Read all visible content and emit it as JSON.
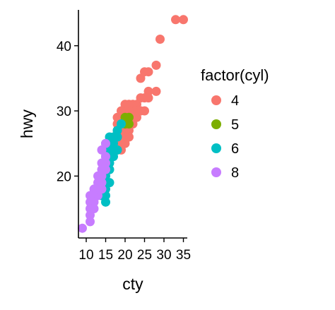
{
  "chart_data": {
    "type": "scatter",
    "title": "",
    "xlabel": "cty",
    "ylabel": "hwy",
    "xlim": [
      8,
      36
    ],
    "ylim": [
      10.5,
      45.5
    ],
    "x_ticks": [
      10,
      15,
      20,
      25,
      30,
      35
    ],
    "y_ticks": [
      20,
      30,
      40
    ],
    "grid": false,
    "legend": {
      "title": "factor(cyl)",
      "placement": "right"
    },
    "series": [
      {
        "name": "4",
        "color": "#F8766D",
        "points": [
          [
            35,
            44
          ],
          [
            33,
            44
          ],
          [
            29,
            41
          ],
          [
            28,
            37
          ],
          [
            26,
            36
          ],
          [
            25,
            36
          ],
          [
            24,
            35
          ],
          [
            28,
            33
          ],
          [
            26,
            33
          ],
          [
            25,
            32
          ],
          [
            24,
            32
          ],
          [
            23,
            31
          ],
          [
            22,
            31
          ],
          [
            21,
            31
          ],
          [
            20,
            31
          ],
          [
            26,
            32
          ],
          [
            25,
            30
          ],
          [
            24,
            30
          ],
          [
            23,
            30
          ],
          [
            22,
            30
          ],
          [
            21,
            30
          ],
          [
            20,
            30
          ],
          [
            19,
            30
          ],
          [
            23,
            29
          ],
          [
            22,
            29
          ],
          [
            21,
            29
          ],
          [
            20,
            29
          ],
          [
            19,
            29
          ],
          [
            18,
            29
          ],
          [
            22,
            28
          ],
          [
            21,
            28
          ],
          [
            20,
            28
          ],
          [
            19,
            28
          ],
          [
            18,
            28
          ],
          [
            21,
            27
          ],
          [
            20,
            27
          ],
          [
            19,
            27
          ],
          [
            18,
            27
          ],
          [
            21,
            26
          ],
          [
            20,
            26
          ],
          [
            19,
            26
          ],
          [
            18,
            26
          ],
          [
            20,
            25
          ],
          [
            19,
            25
          ],
          [
            18,
            25
          ],
          [
            19,
            24
          ],
          [
            18,
            24
          ],
          [
            17,
            24
          ]
        ]
      },
      {
        "name": "5",
        "color": "#7CAE00",
        "points": [
          [
            21,
            29
          ],
          [
            20,
            28
          ],
          [
            21,
            28
          ],
          [
            20,
            29
          ]
        ]
      },
      {
        "name": "6",
        "color": "#00BFC4",
        "points": [
          [
            18,
            27
          ],
          [
            19,
            28
          ],
          [
            18,
            26
          ],
          [
            17,
            26
          ],
          [
            16,
            26
          ],
          [
            17,
            25
          ],
          [
            16,
            25
          ],
          [
            15,
            25
          ],
          [
            18,
            24
          ],
          [
            17,
            24
          ],
          [
            16,
            24
          ],
          [
            15,
            24
          ],
          [
            17,
            23
          ],
          [
            16,
            23
          ],
          [
            15,
            23
          ],
          [
            16,
            22
          ],
          [
            15,
            22
          ],
          [
            16,
            21
          ],
          [
            15,
            21
          ],
          [
            15,
            20
          ],
          [
            14,
            20
          ],
          [
            16,
            19
          ],
          [
            15,
            19
          ],
          [
            15,
            18
          ],
          [
            14,
            18
          ],
          [
            15,
            17
          ],
          [
            14,
            17
          ],
          [
            15,
            16
          ]
        ]
      },
      {
        "name": "8",
        "color": "#C77CFF",
        "points": [
          [
            15,
            25
          ],
          [
            14,
            24
          ],
          [
            15,
            23
          ],
          [
            15,
            22
          ],
          [
            14,
            22
          ],
          [
            14,
            21
          ],
          [
            15,
            21
          ],
          [
            14,
            20
          ],
          [
            13,
            20
          ],
          [
            14,
            19
          ],
          [
            13,
            19
          ],
          [
            13,
            18
          ],
          [
            12,
            18
          ],
          [
            14,
            18
          ],
          [
            13,
            17
          ],
          [
            12,
            17
          ],
          [
            11,
            17
          ],
          [
            12,
            16
          ],
          [
            11,
            16
          ],
          [
            11,
            15
          ],
          [
            12,
            15
          ],
          [
            11,
            14
          ],
          [
            11,
            13
          ],
          [
            9,
            12
          ]
        ]
      }
    ]
  }
}
